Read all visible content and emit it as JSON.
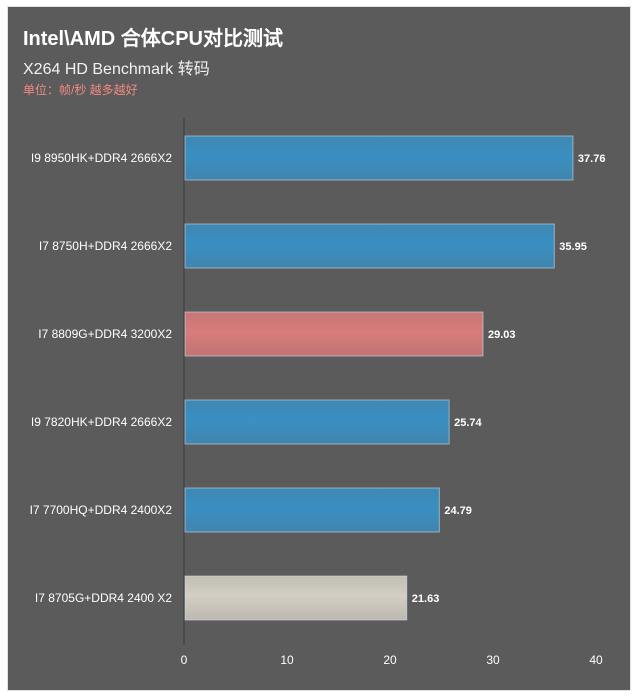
{
  "chart_data": {
    "type": "bar",
    "orientation": "horizontal",
    "title": "Intel\\AMD 合体CPU对比测试",
    "subtitle": "X264 HD Benchmark 转码",
    "unit_note": "单位：帧/秒 越多越好",
    "categories": [
      "I9 8950HK+DDR4 2666X2",
      "I7 8750H+DDR4 2666X2",
      "I7 8809G+DDR4 3200X2",
      "I9 7820HK+DDR4 2666X2",
      "I7 7700HQ+DDR4 2400X2",
      "I7 8705G+DDR4 2400 X2"
    ],
    "values": [
      37.76,
      35.95,
      29.03,
      25.74,
      24.79,
      21.63
    ],
    "value_labels": [
      "37.76",
      "35.95",
      "29.03",
      "25.74",
      "24.79",
      "21.63"
    ],
    "bar_colors": [
      "#3a8fc2",
      "#3a8fc2",
      "#d97b7b",
      "#3a8fc2",
      "#3a8fc2",
      "#d4cfc4"
    ],
    "xlim": [
      0,
      40
    ],
    "xticks": [
      "0",
      "10",
      "20",
      "30",
      "40"
    ],
    "grid": false,
    "legend": "none"
  },
  "colors": {
    "background": "#5b5b5b",
    "bar_blue": "#3a8fc2",
    "bar_highlight": "#d97b7b",
    "bar_neutral": "#d4cfc4",
    "unit_note": "#f08a82"
  }
}
